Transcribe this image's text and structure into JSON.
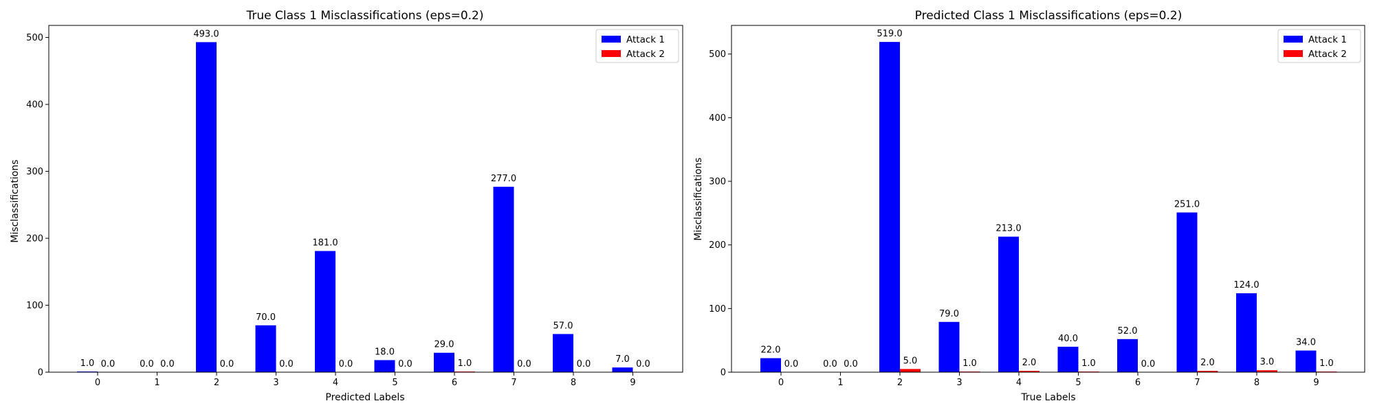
{
  "chart_data": [
    {
      "type": "bar",
      "title": "True Class 1 Misclassifications (eps=0.2)",
      "xlabel": "Predicted Labels",
      "ylabel": "Misclassifications",
      "categories": [
        "0",
        "1",
        "2",
        "3",
        "4",
        "5",
        "6",
        "7",
        "8",
        "9"
      ],
      "ylim": [
        0,
        518
      ],
      "yticks": [
        0,
        100,
        200,
        300,
        400,
        500
      ],
      "grid": false,
      "legend_position": "top-right",
      "series": [
        {
          "name": "Attack 1",
          "color": "#0000ff",
          "values": [
            1,
            0,
            493,
            70,
            181,
            18,
            29,
            277,
            57,
            7
          ],
          "labels": [
            "1.0",
            "0.0",
            "493.0",
            "70.0",
            "181.0",
            "18.0",
            "29.0",
            "277.0",
            "57.0",
            "7.0"
          ]
        },
        {
          "name": "Attack 2",
          "color": "#ff0000",
          "values": [
            0,
            0,
            0,
            0,
            0,
            0,
            1,
            0,
            0,
            0
          ],
          "labels": [
            "0.0",
            "0.0",
            "0.0",
            "0.0",
            "0.0",
            "0.0",
            "1.0",
            "0.0",
            "0.0",
            "0.0"
          ]
        }
      ]
    },
    {
      "type": "bar",
      "title": "Predicted Class 1 Misclassifications (eps=0.2)",
      "xlabel": "True Labels",
      "ylabel": "Misclassifications",
      "categories": [
        "0",
        "1",
        "2",
        "3",
        "4",
        "5",
        "6",
        "7",
        "8",
        "9"
      ],
      "ylim": [
        0,
        545
      ],
      "yticks": [
        0,
        100,
        200,
        300,
        400,
        500
      ],
      "grid": false,
      "legend_position": "top-right",
      "series": [
        {
          "name": "Attack 1",
          "color": "#0000ff",
          "values": [
            22,
            0,
            519,
            79,
            213,
            40,
            52,
            251,
            124,
            34
          ],
          "labels": [
            "22.0",
            "0.0",
            "519.0",
            "79.0",
            "213.0",
            "40.0",
            "52.0",
            "251.0",
            "124.0",
            "34.0"
          ]
        },
        {
          "name": "Attack 2",
          "color": "#ff0000",
          "values": [
            0,
            0,
            5,
            1,
            2,
            1,
            0,
            2,
            3,
            1
          ],
          "labels": [
            "0.0",
            "0.0",
            "5.0",
            "1.0",
            "2.0",
            "1.0",
            "0.0",
            "2.0",
            "3.0",
            "1.0"
          ]
        }
      ]
    }
  ]
}
